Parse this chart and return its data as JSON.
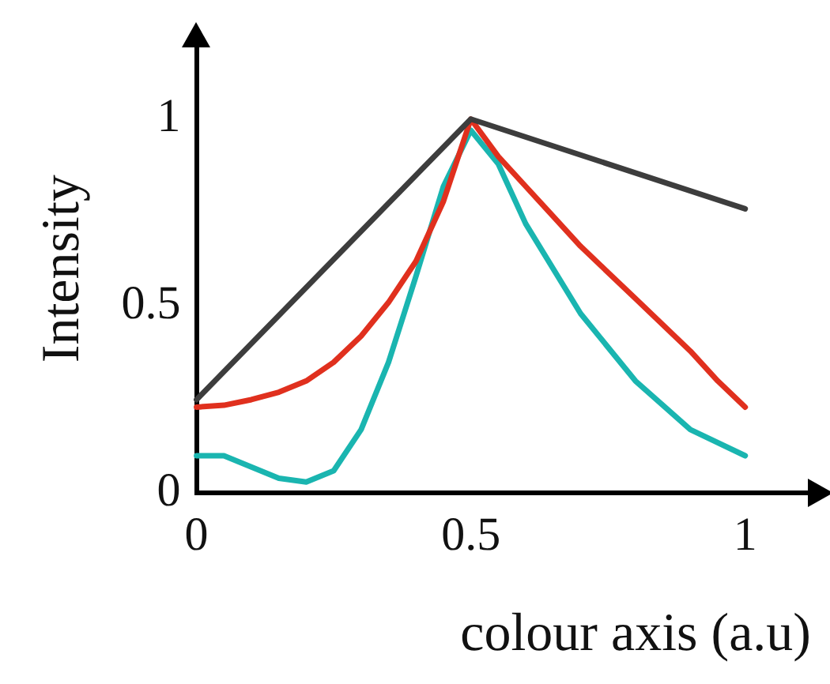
{
  "chart_data": {
    "type": "line",
    "xlabel": "colour axis (a.u)",
    "ylabel": "Intensity",
    "xlim": [
      0,
      1.12
    ],
    "ylim": [
      0,
      1.2
    ],
    "xticks": [
      0,
      0.5,
      1
    ],
    "yticks": [
      0,
      0.5,
      1
    ],
    "grid": false,
    "legend": false,
    "marker": "none",
    "line_style": "solid",
    "series": [
      {
        "color": "#3d3d3d",
        "x": [
          0,
          0.5,
          1
        ],
        "values": [
          0.25,
          1,
          0.76
        ]
      },
      {
        "color": "#e0301e",
        "x": [
          0,
          0.05,
          0.1,
          0.15,
          0.2,
          0.25,
          0.3,
          0.35,
          0.4,
          0.45,
          0.5,
          0.55,
          0.6,
          0.65,
          0.7,
          0.75,
          0.8,
          0.85,
          0.9,
          0.95,
          1
        ],
        "values": [
          0.23,
          0.235,
          0.25,
          0.27,
          0.3,
          0.35,
          0.42,
          0.51,
          0.62,
          0.78,
          1,
          0.9,
          0.82,
          0.74,
          0.66,
          0.59,
          0.52,
          0.45,
          0.38,
          0.3,
          0.23
        ]
      },
      {
        "color": "#1ab5b0",
        "x": [
          0,
          0.05,
          0.1,
          0.15,
          0.2,
          0.25,
          0.3,
          0.35,
          0.4,
          0.45,
          0.5,
          0.55,
          0.6,
          0.7,
          0.8,
          0.9,
          1
        ],
        "values": [
          0.1,
          0.1,
          0.07,
          0.04,
          0.03,
          0.06,
          0.17,
          0.35,
          0.58,
          0.82,
          0.97,
          0.88,
          0.72,
          0.48,
          0.3,
          0.17,
          0.1
        ]
      }
    ]
  }
}
